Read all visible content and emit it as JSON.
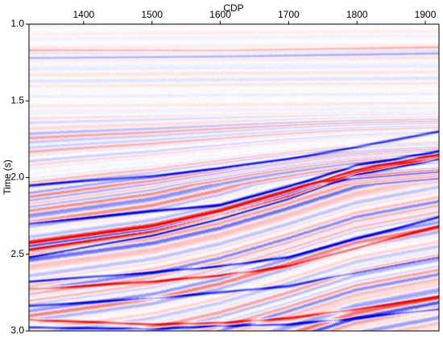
{
  "chart_data": {
    "type": "heatmap",
    "description_kind": "seismic section",
    "xlabel": "CDP",
    "ylabel": "Time (s)",
    "xlim": [
      1320,
      1920
    ],
    "ylim": [
      1.0,
      3.0
    ],
    "y_reversed": true,
    "x_axis_position": "top",
    "x_ticks": [
      1400,
      1500,
      1600,
      1700,
      1800,
      1900
    ],
    "x_tick_labels": [
      "1400",
      "1500",
      "1600",
      "1700",
      "1800",
      "1900"
    ],
    "y_ticks": [
      1.0,
      1.5,
      2.0,
      2.5,
      3.0
    ],
    "y_tick_labels": [
      "1.0",
      "1.5",
      "2.0",
      "2.5",
      "3.0"
    ],
    "colormap": [
      "#0000ff",
      "#ffffff",
      "#ff0000"
    ],
    "grid": false,
    "legend": "none",
    "reflectors": [
      {
        "polarity": "negative",
        "strength": 0.9,
        "points": [
          [
            1320,
            2.3
          ],
          [
            1500,
            2.22
          ],
          [
            1600,
            2.18
          ],
          [
            1700,
            2.06
          ],
          [
            1800,
            1.92
          ],
          [
            1920,
            1.83
          ]
        ]
      },
      {
        "polarity": "positive",
        "strength": 1.0,
        "points": [
          [
            1320,
            2.43
          ],
          [
            1500,
            2.32
          ],
          [
            1600,
            2.22
          ],
          [
            1700,
            2.09
          ],
          [
            1800,
            1.95
          ],
          [
            1920,
            1.85
          ]
        ]
      },
      {
        "polarity": "negative",
        "strength": 1.0,
        "points": [
          [
            1320,
            2.52
          ],
          [
            1500,
            2.38
          ],
          [
            1600,
            2.27
          ],
          [
            1700,
            2.14
          ],
          [
            1800,
            1.98
          ],
          [
            1920,
            1.88
          ]
        ]
      },
      {
        "polarity": "positive",
        "strength": 0.85,
        "points": [
          [
            1320,
            2.47
          ],
          [
            1500,
            2.35
          ],
          [
            1600,
            2.24
          ],
          [
            1700,
            2.12
          ],
          [
            1800,
            1.97
          ],
          [
            1920,
            1.87
          ]
        ]
      },
      {
        "polarity": "negative",
        "strength": 0.7,
        "points": [
          [
            1320,
            2.05
          ],
          [
            1500,
            1.99
          ],
          [
            1600,
            1.94
          ],
          [
            1700,
            1.88
          ],
          [
            1800,
            1.8
          ],
          [
            1920,
            1.7
          ]
        ]
      },
      {
        "polarity": "negative",
        "strength": 0.8,
        "points": [
          [
            1320,
            2.68
          ],
          [
            1500,
            2.62
          ],
          [
            1600,
            2.58
          ],
          [
            1700,
            2.52
          ],
          [
            1800,
            2.4
          ],
          [
            1920,
            2.26
          ]
        ]
      },
      {
        "polarity": "positive",
        "strength": 0.8,
        "points": [
          [
            1320,
            2.73
          ],
          [
            1500,
            2.68
          ],
          [
            1600,
            2.64
          ],
          [
            1700,
            2.58
          ],
          [
            1800,
            2.46
          ],
          [
            1920,
            2.32
          ]
        ]
      },
      {
        "polarity": "negative",
        "strength": 0.7,
        "points": [
          [
            1320,
            2.84
          ],
          [
            1500,
            2.79
          ],
          [
            1600,
            2.75
          ],
          [
            1700,
            2.71
          ],
          [
            1800,
            2.62
          ],
          [
            1920,
            2.52
          ]
        ]
      },
      {
        "polarity": "positive",
        "strength": 0.75,
        "points": [
          [
            1320,
            2.93
          ],
          [
            1500,
            2.96
          ],
          [
            1600,
            2.95
          ],
          [
            1700,
            2.92
          ],
          [
            1800,
            2.86
          ],
          [
            1920,
            2.78
          ]
        ]
      },
      {
        "polarity": "negative",
        "strength": 0.75,
        "points": [
          [
            1320,
            2.98
          ],
          [
            1500,
            2.99
          ],
          [
            1600,
            2.97
          ],
          [
            1700,
            2.96
          ],
          [
            1800,
            2.92
          ],
          [
            1920,
            2.86
          ]
        ]
      },
      {
        "polarity": "positive",
        "strength": 0.35,
        "points": [
          [
            1320,
            1.17
          ],
          [
            1600,
            1.17
          ],
          [
            1920,
            1.15
          ]
        ]
      },
      {
        "polarity": "negative",
        "strength": 0.3,
        "points": [
          [
            1320,
            1.22
          ],
          [
            1600,
            1.21
          ],
          [
            1920,
            1.19
          ]
        ]
      }
    ]
  }
}
